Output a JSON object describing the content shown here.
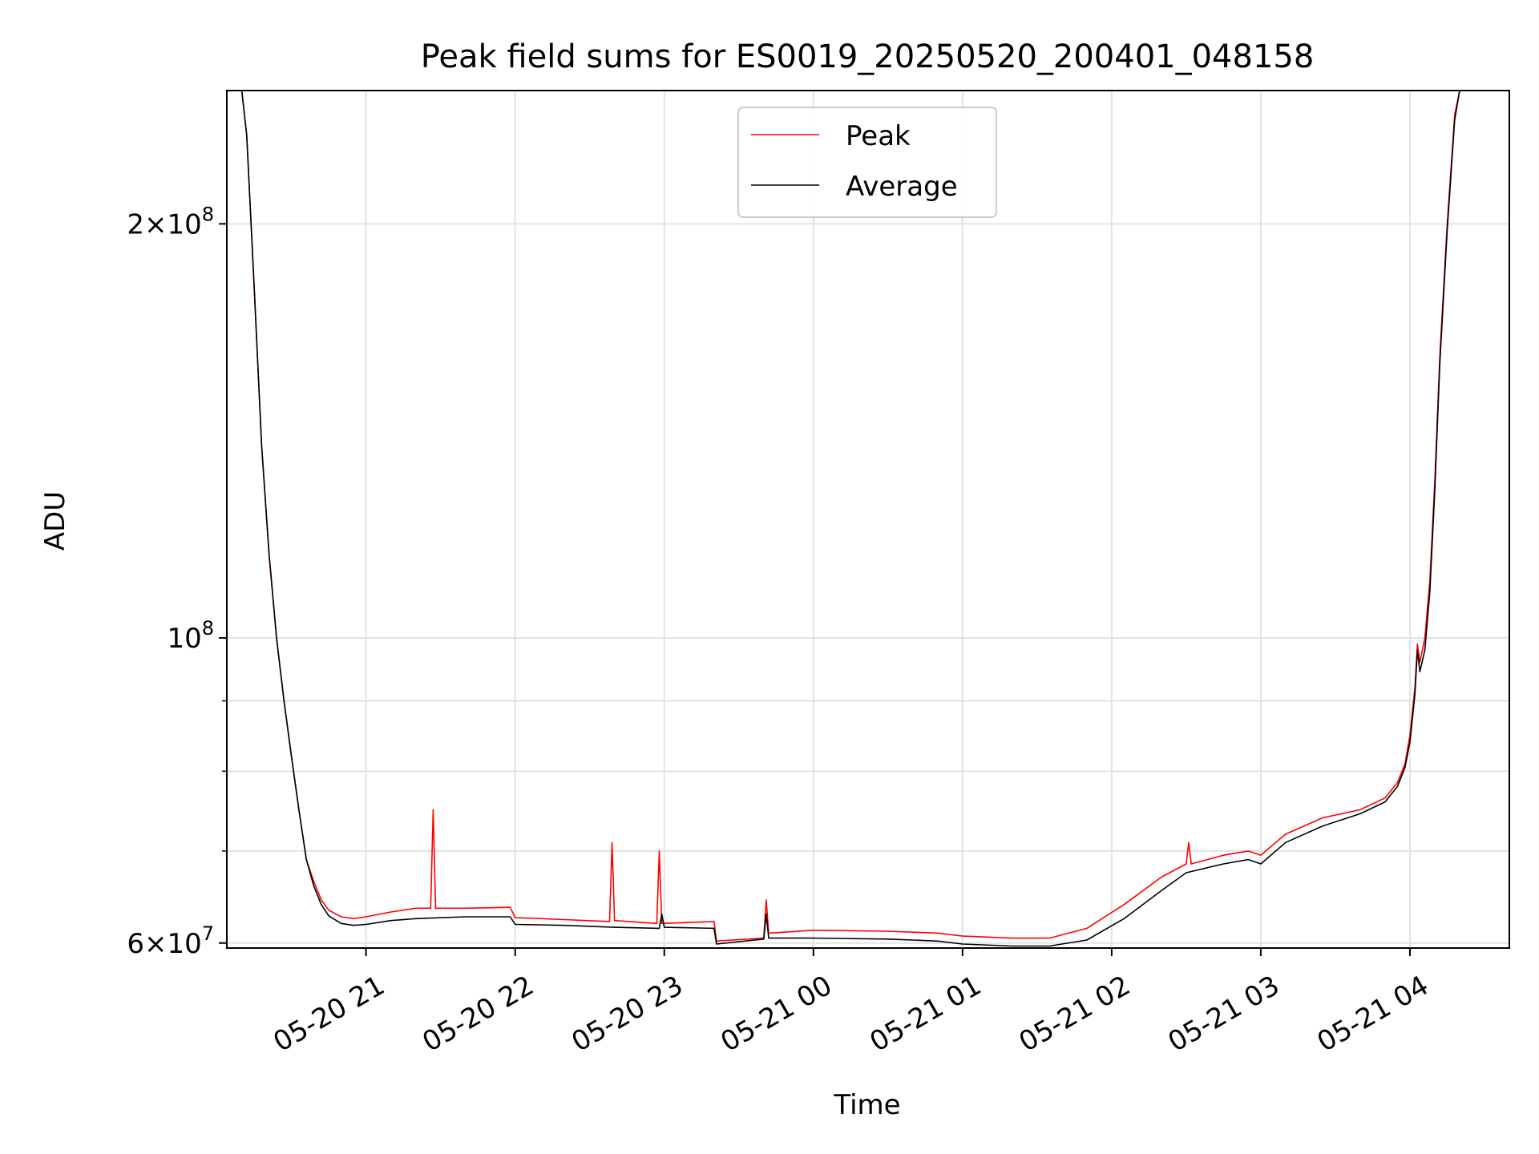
{
  "chart_data": {
    "type": "line",
    "title": "Peak field sums for ES0019_20250520_200401_048158",
    "xlabel": "Time",
    "ylabel": "ADU",
    "yscale": "log",
    "ylim": [
      59500000,
      250000000
    ],
    "xlim": [
      "05-20 20:04",
      "05-21 04:40"
    ],
    "grid": true,
    "legend": {
      "placement": "upper center"
    },
    "x_ticks": [
      {
        "label": "05-20 21",
        "value": "05-20 21:00"
      },
      {
        "label": "05-20 22",
        "value": "05-20 22:00"
      },
      {
        "label": "05-20 23",
        "value": "05-20 23:00"
      },
      {
        "label": "05-21 00",
        "value": "05-21 00:00"
      },
      {
        "label": "05-21 01",
        "value": "05-21 01:00"
      },
      {
        "label": "05-21 02",
        "value": "05-21 02:00"
      },
      {
        "label": "05-21 03",
        "value": "05-21 03:00"
      },
      {
        "label": "05-21 04",
        "value": "05-21 04:00"
      }
    ],
    "y_ticks": [
      {
        "base": "6",
        "exp": "7",
        "value": 60000000
      },
      {
        "base": "",
        "exp": "8",
        "value": 100000000
      },
      {
        "base": "2",
        "exp": "8",
        "value": 200000000
      }
    ],
    "y_minor_ticks": [
      70000000,
      80000000,
      90000000
    ],
    "series": [
      {
        "name": "Peak",
        "color": "#ff0000",
        "x": [
          "05-20 20:10",
          "05-20 20:12",
          "05-20 20:15",
          "05-20 20:18",
          "05-20 20:21",
          "05-20 20:24",
          "05-20 20:27",
          "05-20 20:30",
          "05-20 20:33",
          "05-20 20:36",
          "05-20 20:39",
          "05-20 20:42",
          "05-20 20:45",
          "05-20 20:50",
          "05-20 20:55",
          "05-20 21:00",
          "05-20 21:10",
          "05-20 21:20",
          "05-20 21:26",
          "05-20 21:27",
          "05-20 21:28",
          "05-20 21:40",
          "05-20 21:58",
          "05-20 22:00",
          "05-20 22:20",
          "05-20 22:38",
          "05-20 22:39",
          "05-20 22:40",
          "05-20 22:57",
          "05-20 22:58",
          "05-20 22:59",
          "05-20 23:20",
          "05-20 23:21",
          "05-20 23:40",
          "05-20 23:41",
          "05-20 23:42",
          "05-21 00:00",
          "05-21 00:30",
          "05-21 00:50",
          "05-21 01:00",
          "05-21 01:20",
          "05-21 01:35",
          "05-21 01:50",
          "05-21 02:05",
          "05-21 02:20",
          "05-21 02:30",
          "05-21 02:31",
          "05-21 02:32",
          "05-21 02:45",
          "05-21 02:55",
          "05-21 03:00",
          "05-21 03:10",
          "05-21 03:25",
          "05-21 03:40",
          "05-21 03:50",
          "05-21 03:55",
          "05-21 03:58",
          "05-21 04:00",
          "05-21 04:02",
          "05-21 04:03",
          "05-21 04:04",
          "05-21 04:06",
          "05-21 04:08",
          "05-21 04:10",
          "05-21 04:12",
          "05-21 04:15",
          "05-21 04:18",
          "05-21 04:20"
        ],
        "y": [
          250000000,
          232000000,
          180000000,
          138000000,
          115000000,
          100000000,
          90000000,
          82000000,
          75000000,
          69000000,
          66500000,
          64500000,
          63400000,
          62700000,
          62500000,
          62700000,
          63200000,
          63600000,
          63600000,
          75000000,
          63600000,
          63600000,
          63700000,
          62600000,
          62400000,
          62200000,
          71000000,
          62300000,
          62000000,
          70000000,
          62000000,
          62200000,
          60200000,
          60500000,
          64500000,
          61000000,
          61300000,
          61200000,
          61000000,
          60700000,
          60500000,
          60500000,
          61500000,
          64000000,
          67000000,
          68500000,
          71000000,
          68500000,
          69500000,
          70000000,
          69500000,
          72000000,
          74000000,
          75000000,
          76500000,
          78500000,
          81000000,
          85000000,
          92000000,
          99000000,
          96000000,
          100000000,
          110000000,
          130000000,
          160000000,
          200000000,
          240000000,
          250000000
        ]
      },
      {
        "name": "Average",
        "color": "#000000",
        "x": [
          "05-20 20:10",
          "05-20 20:12",
          "05-20 20:15",
          "05-20 20:18",
          "05-20 20:21",
          "05-20 20:24",
          "05-20 20:27",
          "05-20 20:30",
          "05-20 20:33",
          "05-20 20:36",
          "05-20 20:39",
          "05-20 20:42",
          "05-20 20:45",
          "05-20 20:50",
          "05-20 20:55",
          "05-20 21:00",
          "05-20 21:10",
          "05-20 21:20",
          "05-20 21:40",
          "05-20 21:58",
          "05-20 22:00",
          "05-20 22:20",
          "05-20 22:40",
          "05-20 22:58",
          "05-20 22:59",
          "05-20 23:00",
          "05-20 23:20",
          "05-20 23:21",
          "05-20 23:40",
          "05-20 23:41",
          "05-20 23:42",
          "05-21 00:00",
          "05-21 00:30",
          "05-21 00:50",
          "05-21 01:00",
          "05-21 01:20",
          "05-21 01:35",
          "05-21 01:50",
          "05-21 02:05",
          "05-21 02:20",
          "05-21 02:30",
          "05-21 02:45",
          "05-21 02:55",
          "05-21 03:00",
          "05-21 03:10",
          "05-21 03:25",
          "05-21 03:40",
          "05-21 03:50",
          "05-21 03:55",
          "05-21 03:58",
          "05-21 04:00",
          "05-21 04:02",
          "05-21 04:03",
          "05-21 04:04",
          "05-21 04:06",
          "05-21 04:08",
          "05-21 04:10",
          "05-21 04:12",
          "05-21 04:15",
          "05-21 04:18",
          "05-21 04:20"
        ],
        "y": [
          250000000,
          232000000,
          180000000,
          138000000,
          115000000,
          100000000,
          90000000,
          82000000,
          75000000,
          69000000,
          66000000,
          64000000,
          62800000,
          62000000,
          61800000,
          61900000,
          62300000,
          62500000,
          62700000,
          62700000,
          61900000,
          61800000,
          61600000,
          61500000,
          63000000,
          61600000,
          61500000,
          59900000,
          60400000,
          63000000,
          60500000,
          60500000,
          60400000,
          60200000,
          59900000,
          59700000,
          59700000,
          60300000,
          62500000,
          65500000,
          67500000,
          68500000,
          69000000,
          68500000,
          71000000,
          73000000,
          74500000,
          76000000,
          78000000,
          80500000,
          84000000,
          91000000,
          98000000,
          94500000,
          98000000,
          108000000,
          128000000,
          158000000,
          198000000,
          238000000,
          250000000
        ]
      }
    ]
  }
}
